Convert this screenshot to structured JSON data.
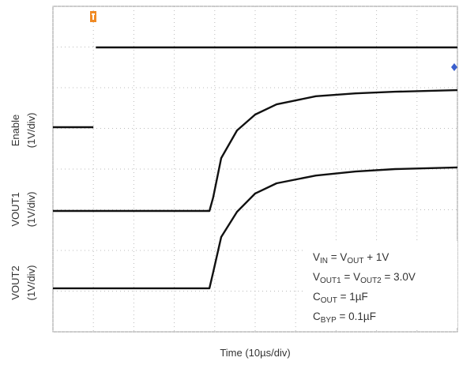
{
  "chart_data": {
    "type": "line",
    "x_label": "Time (10µs/div)",
    "xlim": [
      0,
      10
    ],
    "ylim": [
      0,
      8
    ],
    "xticks": [
      0,
      1,
      2,
      3,
      4,
      5,
      6,
      7,
      8,
      9,
      10
    ],
    "yticks": [
      0,
      1,
      2,
      3,
      4,
      5,
      6,
      7,
      8
    ],
    "grid": true,
    "series": [
      {
        "name": "Enable",
        "scale": "(1V/div)",
        "color": "#111111",
        "x": [
          0,
          1.0,
          1.04,
          1.06,
          10
        ],
        "values": [
          5.03,
          5.03,
          null,
          6.99,
          6.99
        ]
      },
      {
        "name": "VOUT1",
        "scale": "(1V/div)",
        "color": "#111111",
        "x": [
          0,
          3.87,
          3.96,
          4.16,
          4.55,
          5.0,
          5.53,
          6.5,
          7.48,
          8.46,
          10
        ],
        "values": [
          2.97,
          2.97,
          3.3,
          4.27,
          4.95,
          5.34,
          5.59,
          5.79,
          5.86,
          5.9,
          5.94
        ]
      },
      {
        "name": "VOUT2",
        "scale": "(1V/div)",
        "color": "#111111",
        "x": [
          0,
          3.87,
          3.96,
          4.16,
          4.55,
          5.0,
          5.53,
          6.5,
          7.48,
          8.46,
          10
        ],
        "values": [
          1.07,
          1.07,
          1.46,
          2.33,
          2.95,
          3.4,
          3.65,
          3.84,
          3.94,
          4.0,
          4.04
        ]
      }
    ],
    "annotations": [
      [
        {
          "text": "V"
        },
        {
          "text": "IN",
          "sub": true
        },
        {
          "text": " = V"
        },
        {
          "text": "OUT",
          "sub": true
        },
        {
          "text": " + 1V"
        }
      ],
      [
        {
          "text": "V"
        },
        {
          "text": "OUT1",
          "sub": true
        },
        {
          "text": " = V"
        },
        {
          "text": "OUT2",
          "sub": true
        },
        {
          "text": " = 3.0V"
        }
      ],
      [
        {
          "text": "C"
        },
        {
          "text": "OUT",
          "sub": true
        },
        {
          "text": " = 1µF"
        }
      ],
      [
        {
          "text": "C"
        },
        {
          "text": "BYP",
          "sub": true
        },
        {
          "text": " = 0.1µF"
        }
      ]
    ]
  }
}
